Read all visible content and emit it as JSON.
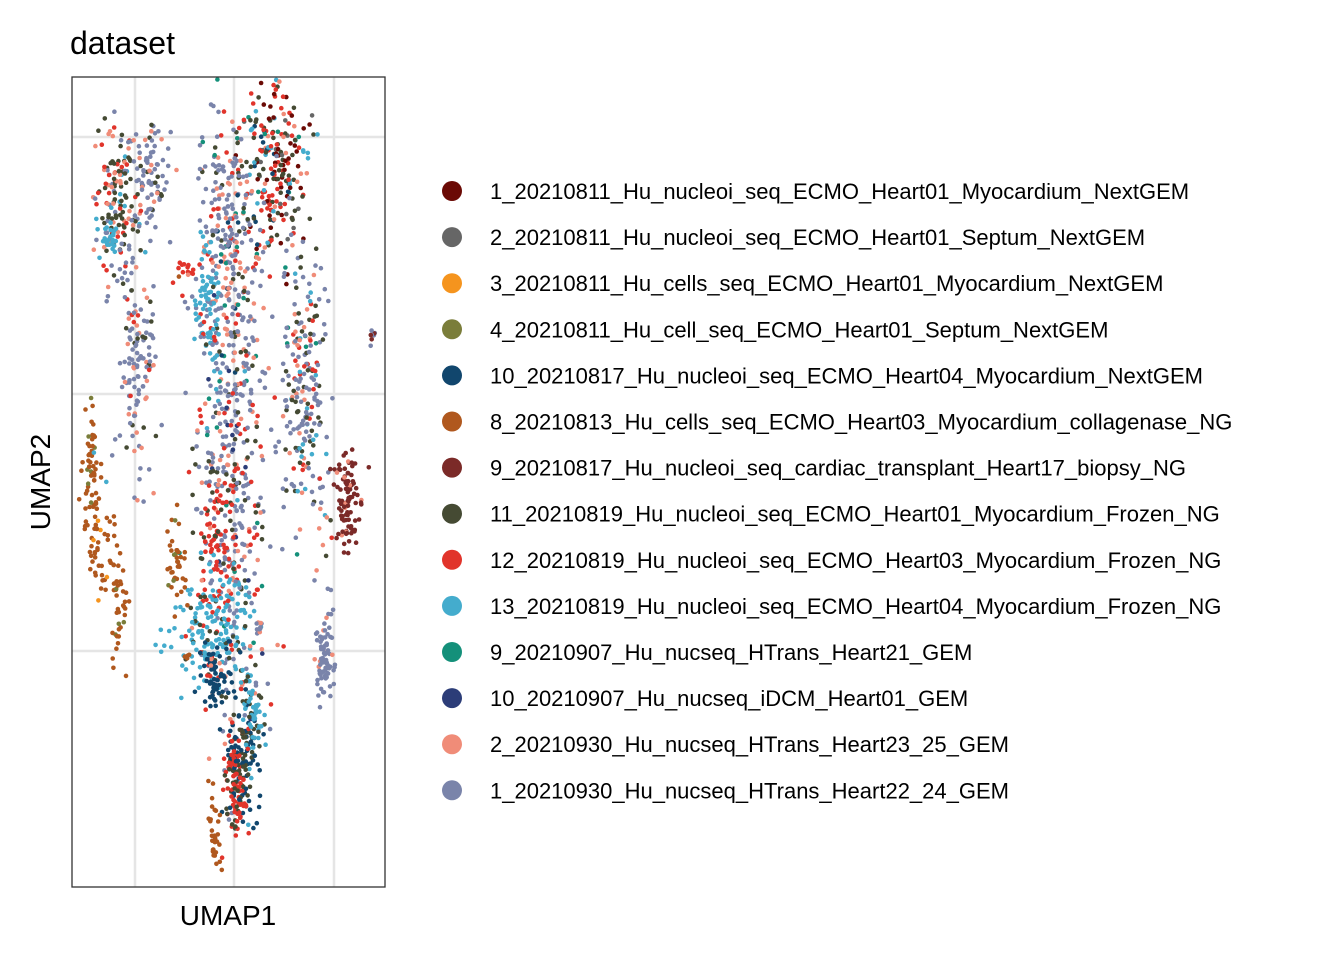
{
  "chart_data": {
    "type": "scatter",
    "title": "dataset",
    "xlabel": "UMAP1",
    "ylabel": "UMAP2",
    "grid": true,
    "axis_ticks_labeled": false,
    "legend_placement": "right",
    "xlim": [
      0,
      10
    ],
    "ylim": [
      0,
      10
    ],
    "series": [
      {
        "name": "1_20210811_Hu_nucleoi_seq_ECMO_Heart01_Myocardium_NextGEM",
        "color": "#6B0A05"
      },
      {
        "name": "2_20210811_Hu_nucleoi_seq_ECMO_Heart01_Septum_NextGEM",
        "color": "#666666"
      },
      {
        "name": "3_20210811_Hu_cells_seq_ECMO_Heart01_Myocardium_NextGEM",
        "color": "#F5941E"
      },
      {
        "name": "4_20210811_Hu_cell_seq_ECMO_Heart01_Septum_NextGEM",
        "color": "#7A7D3A"
      },
      {
        "name": "10_20210817_Hu_nucleoi_seq_ECMO_Heart04_Myocardium_NextGEM",
        "color": "#11466D"
      },
      {
        "name": "8_20210813_Hu_cells_seq_ECMO_Heart03_Myocardium_collagenase_NG",
        "color": "#B0581E"
      },
      {
        "name": "9_20210817_Hu_nucleoi_seq_cardiac_transplant_Heart17_biopsy_NG",
        "color": "#7B2A28"
      },
      {
        "name": "11_20210819_Hu_nucleoi_seq_ECMO_Heart01_Myocardium_Frozen_NG",
        "color": "#454A33"
      },
      {
        "name": "12_20210819_Hu_nucleoi_seq_ECMO_Heart03_Myocardium_Frozen_NG",
        "color": "#E1342B"
      },
      {
        "name": "13_20210819_Hu_nucleoi_seq_ECMO_Heart04_Myocardium_Frozen_NG",
        "color": "#44ACCD"
      },
      {
        "name": "9_20210907_Hu_nucseq_HTrans_Heart21_GEM",
        "color": "#14907A"
      },
      {
        "name": "10_20210907_Hu_nucseq_iDCM_Heart01_GEM",
        "color": "#2C3D78"
      },
      {
        "name": "2_20210930_Hu_nucseq_HTrans_Heart23_25_GEM",
        "color": "#F08C78"
      },
      {
        "name": "1_20210930_Hu_nucseq_HTrans_Heart22_24_GEM",
        "color": "#7A84AA"
      }
    ],
    "clusters": [
      {
        "cx": 6.5,
        "cy": 8.9,
        "sx": 0.55,
        "sy": 0.55,
        "n": 230,
        "rot": 0.7,
        "mix": [
          [
            0,
            3
          ],
          [
            7,
            3
          ],
          [
            8,
            3
          ],
          [
            1,
            1
          ],
          [
            12,
            1
          ],
          [
            9,
            1
          ],
          [
            10,
            0.5
          ],
          [
            4,
            0.5
          ]
        ]
      },
      {
        "cx": 5.0,
        "cy": 7.9,
        "sx": 0.45,
        "sy": 0.95,
        "n": 280,
        "rot": 0.15,
        "mix": [
          [
            13,
            6
          ],
          [
            12,
            2
          ],
          [
            8,
            1
          ],
          [
            7,
            1
          ],
          [
            10,
            0.5
          ],
          [
            4,
            0.3
          ]
        ]
      },
      {
        "cx": 1.45,
        "cy": 8.5,
        "sx": 0.35,
        "sy": 0.45,
        "n": 150,
        "rot": 0.3,
        "mix": [
          [
            7,
            4
          ],
          [
            8,
            2
          ],
          [
            13,
            2
          ],
          [
            12,
            1
          ],
          [
            9,
            0.5
          ]
        ]
      },
      {
        "cx": 2.5,
        "cy": 8.8,
        "sx": 0.3,
        "sy": 0.35,
        "n": 80,
        "rot": -0.6,
        "mix": [
          [
            13,
            6
          ],
          [
            12,
            1
          ],
          [
            7,
            1
          ]
        ]
      },
      {
        "cx": 1.2,
        "cy": 8.0,
        "sx": 0.2,
        "sy": 0.12,
        "n": 30,
        "rot": 0,
        "mix": [
          [
            9,
            6
          ],
          [
            12,
            1
          ]
        ]
      },
      {
        "cx": 4.3,
        "cy": 7.1,
        "sx": 0.2,
        "sy": 0.5,
        "n": 80,
        "rot": 0.2,
        "mix": [
          [
            9,
            8
          ],
          [
            13,
            1
          ]
        ]
      },
      {
        "cx": 3.65,
        "cy": 7.6,
        "sx": 0.15,
        "sy": 0.08,
        "n": 15,
        "rot": 0,
        "mix": [
          [
            8,
            2
          ],
          [
            5,
            1
          ],
          [
            12,
            1
          ]
        ]
      },
      {
        "cx": 7.4,
        "cy": 6.1,
        "sx": 0.4,
        "sy": 0.9,
        "n": 230,
        "rot": 0.12,
        "mix": [
          [
            13,
            5
          ],
          [
            7,
            2
          ],
          [
            12,
            1
          ],
          [
            9,
            0.7
          ],
          [
            8,
            0.5
          ],
          [
            10,
            0.3
          ]
        ]
      },
      {
        "cx": 2.05,
        "cy": 6.4,
        "sx": 0.3,
        "sy": 0.7,
        "n": 130,
        "rot": 0,
        "mix": [
          [
            13,
            5
          ],
          [
            12,
            2
          ],
          [
            7,
            1
          ],
          [
            8,
            0.3
          ]
        ]
      },
      {
        "cx": 5.15,
        "cy": 4.9,
        "sx": 0.55,
        "sy": 1.5,
        "n": 380,
        "rot": 0.05,
        "mix": [
          [
            13,
            6
          ],
          [
            8,
            2
          ],
          [
            7,
            2
          ],
          [
            12,
            1.5
          ],
          [
            11,
            0.5
          ],
          [
            10,
            0.3
          ],
          [
            9,
            0.3
          ]
        ]
      },
      {
        "cx": 4.6,
        "cy": 4.2,
        "sx": 0.3,
        "sy": 0.55,
        "n": 90,
        "rot": 0,
        "mix": [
          [
            8,
            6
          ],
          [
            7,
            2
          ],
          [
            12,
            1
          ]
        ]
      },
      {
        "cx": 4.5,
        "cy": 3.2,
        "sx": 0.65,
        "sy": 0.35,
        "n": 160,
        "rot": 0.2,
        "mix": [
          [
            9,
            8
          ],
          [
            7,
            1
          ],
          [
            8,
            0.5
          ]
        ]
      },
      {
        "cx": 0.6,
        "cy": 5.2,
        "sx": 0.15,
        "sy": 0.35,
        "n": 50,
        "rot": 0,
        "mix": [
          [
            5,
            6
          ],
          [
            3,
            1
          ],
          [
            9,
            0.5
          ]
        ]
      },
      {
        "cx": 0.75,
        "cy": 4.25,
        "sx": 0.15,
        "sy": 0.35,
        "n": 40,
        "rot": 0.2,
        "mix": [
          [
            5,
            7
          ],
          [
            2,
            1
          ]
        ]
      },
      {
        "cx": 1.45,
        "cy": 3.7,
        "sx": 0.15,
        "sy": 0.5,
        "n": 50,
        "rot": 0.1,
        "mix": [
          [
            5,
            7
          ],
          [
            3,
            1
          ]
        ]
      },
      {
        "cx": 3.35,
        "cy": 3.9,
        "sx": 0.15,
        "sy": 0.35,
        "n": 40,
        "rot": 0,
        "mix": [
          [
            5,
            6
          ],
          [
            3,
            1
          ],
          [
            10,
            0.5
          ]
        ]
      },
      {
        "cx": 8.8,
        "cy": 4.8,
        "sx": 0.18,
        "sy": 0.3,
        "n": 100,
        "rot": 0,
        "mix": [
          [
            6,
            8
          ],
          [
            12,
            1
          ]
        ]
      },
      {
        "cx": 9.6,
        "cy": 6.8,
        "sx": 0.05,
        "sy": 0.05,
        "n": 8,
        "rot": 0,
        "mix": [
          [
            13,
            2
          ],
          [
            6,
            1
          ]
        ]
      },
      {
        "cx": 4.55,
        "cy": 2.6,
        "sx": 0.2,
        "sy": 0.2,
        "n": 60,
        "rot": 0,
        "mix": [
          [
            4,
            7
          ],
          [
            12,
            1
          ]
        ]
      },
      {
        "cx": 5.5,
        "cy": 1.8,
        "sx": 0.25,
        "sy": 0.4,
        "n": 90,
        "rot": 0.3,
        "mix": [
          [
            4,
            5
          ],
          [
            7,
            2
          ],
          [
            9,
            1
          ]
        ]
      },
      {
        "cx": 5.25,
        "cy": 1.35,
        "sx": 0.2,
        "sy": 0.3,
        "n": 120,
        "rot": 0,
        "mix": [
          [
            8,
            5
          ],
          [
            7,
            3
          ],
          [
            4,
            1
          ]
        ]
      },
      {
        "cx": 5.8,
        "cy": 2.15,
        "sx": 0.15,
        "sy": 0.25,
        "n": 50,
        "rot": 0.5,
        "mix": [
          [
            9,
            6
          ],
          [
            7,
            1
          ]
        ]
      },
      {
        "cx": 8.05,
        "cy": 2.85,
        "sx": 0.15,
        "sy": 0.3,
        "n": 80,
        "rot": 0,
        "mix": [
          [
            13,
            8
          ],
          [
            12,
            0.5
          ]
        ]
      },
      {
        "cx": 6.0,
        "cy": 3.2,
        "sx": 0.08,
        "sy": 0.05,
        "n": 10,
        "rot": 0,
        "mix": [
          [
            13,
            2
          ],
          [
            12,
            1
          ]
        ]
      },
      {
        "cx": 3.65,
        "cy": 2.85,
        "sx": 0.05,
        "sy": 0.04,
        "n": 4,
        "rot": 0,
        "mix": [
          [
            5,
            1
          ]
        ]
      },
      {
        "cx": 4.55,
        "cy": 0.6,
        "sx": 0.1,
        "sy": 0.3,
        "n": 30,
        "rot": 0.1,
        "mix": [
          [
            5,
            8
          ]
        ]
      }
    ]
  }
}
